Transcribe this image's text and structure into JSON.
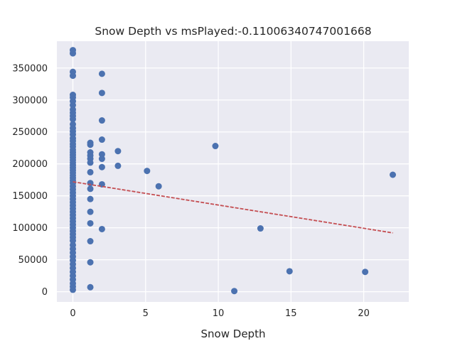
{
  "chart_data": {
    "type": "scatter",
    "title": "Snow Depth vs msPlayed:-0.11006340747001668",
    "xlabel": "Snow Depth",
    "ylabel": "",
    "xlim": [
      -1.1,
      23.1
    ],
    "ylim": [
      -16000,
      392000
    ],
    "xticks": [
      0,
      5,
      10,
      15,
      20
    ],
    "yticks": [
      0,
      50000,
      100000,
      150000,
      200000,
      250000,
      300000,
      350000
    ],
    "grid": true,
    "background": "#eaeaf2",
    "point_color": "#4c72b0",
    "trend_color": "#c44e52",
    "trendline": {
      "x": [
        0,
        22
      ],
      "y": [
        172000,
        92000
      ]
    },
    "points": [
      [
        0,
        378000
      ],
      [
        0,
        373000
      ],
      [
        0,
        344000
      ],
      [
        0,
        338000
      ],
      [
        0,
        308000
      ],
      [
        0,
        304000
      ],
      [
        0,
        298000
      ],
      [
        0,
        292000
      ],
      [
        0,
        285000
      ],
      [
        0,
        280000
      ],
      [
        0,
        275000
      ],
      [
        0,
        270000
      ],
      [
        0,
        262000
      ],
      [
        0,
        256000
      ],
      [
        0,
        251000
      ],
      [
        0,
        246000
      ],
      [
        0,
        240000
      ],
      [
        0,
        236000
      ],
      [
        0,
        231000
      ],
      [
        0,
        227000
      ],
      [
        0,
        222000
      ],
      [
        0,
        218000
      ],
      [
        0,
        214000
      ],
      [
        0,
        210000
      ],
      [
        0,
        206000
      ],
      [
        0,
        202000
      ],
      [
        0,
        198000
      ],
      [
        0,
        194000
      ],
      [
        0,
        190000
      ],
      [
        0,
        186000
      ],
      [
        0,
        182000
      ],
      [
        0,
        178000
      ],
      [
        0,
        174000
      ],
      [
        0,
        170000
      ],
      [
        0,
        165000
      ],
      [
        0,
        160000
      ],
      [
        0,
        155000
      ],
      [
        0,
        150000
      ],
      [
        0,
        145000
      ],
      [
        0,
        140000
      ],
      [
        0,
        135000
      ],
      [
        0,
        130000
      ],
      [
        0,
        125000
      ],
      [
        0,
        120000
      ],
      [
        0,
        115000
      ],
      [
        0,
        110000
      ],
      [
        0,
        105000
      ],
      [
        0,
        100000
      ],
      [
        0,
        95000
      ],
      [
        0,
        90000
      ],
      [
        0,
        85000
      ],
      [
        0,
        80000
      ],
      [
        0,
        73000
      ],
      [
        0,
        67000
      ],
      [
        0,
        61000
      ],
      [
        0,
        55000
      ],
      [
        0,
        49000
      ],
      [
        0,
        43000
      ],
      [
        0,
        37000
      ],
      [
        0,
        31000
      ],
      [
        0,
        25000
      ],
      [
        0,
        19000
      ],
      [
        0,
        13000
      ],
      [
        0,
        8000
      ],
      [
        0,
        3000
      ],
      [
        1.2,
        233000
      ],
      [
        1.2,
        230000
      ],
      [
        1.2,
        218000
      ],
      [
        1.2,
        213000
      ],
      [
        1.2,
        208000
      ],
      [
        1.2,
        202000
      ],
      [
        1.2,
        187000
      ],
      [
        1.2,
        170000
      ],
      [
        1.2,
        161000
      ],
      [
        1.2,
        145000
      ],
      [
        1.2,
        125000
      ],
      [
        1.2,
        107000
      ],
      [
        1.2,
        79000
      ],
      [
        1.2,
        46000
      ],
      [
        1.2,
        7000
      ],
      [
        2,
        341000
      ],
      [
        2,
        311000
      ],
      [
        2,
        268000
      ],
      [
        2,
        238000
      ],
      [
        2,
        215000
      ],
      [
        2,
        208000
      ],
      [
        2,
        195000
      ],
      [
        2,
        168000
      ],
      [
        2,
        98000
      ],
      [
        3.1,
        220000
      ],
      [
        3.1,
        197000
      ],
      [
        5.1,
        189000
      ],
      [
        5.9,
        165000
      ],
      [
        9.8,
        228000
      ],
      [
        11.1,
        1000
      ],
      [
        12.9,
        99000
      ],
      [
        14.9,
        32000
      ],
      [
        20.1,
        31000
      ],
      [
        22,
        183000
      ]
    ]
  }
}
